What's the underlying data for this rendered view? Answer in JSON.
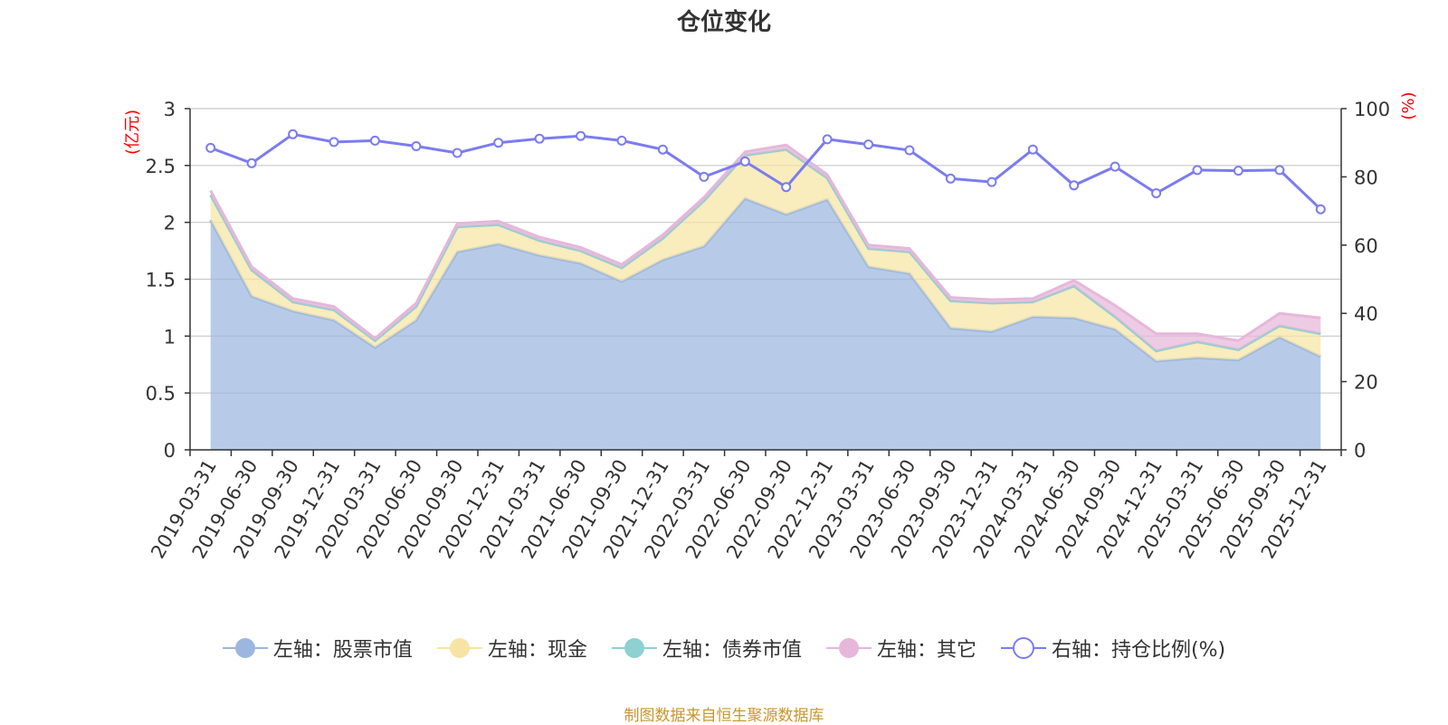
{
  "chart_data": {
    "type": "area",
    "title": "仓位变化",
    "y_left_label": "(亿元)",
    "y_right_label": "(%)",
    "y_left_range": [
      0,
      3
    ],
    "y_right_range": [
      0,
      100
    ],
    "y_left_ticks": [
      "0",
      "0.5",
      "1",
      "1.5",
      "2",
      "2.5",
      "3"
    ],
    "y_right_ticks": [
      "0",
      "20",
      "40",
      "60",
      "80",
      "100"
    ],
    "categories": [
      "2019-03-31",
      "2019-06-30",
      "2019-09-30",
      "2019-12-31",
      "2020-03-31",
      "2020-06-30",
      "2020-09-30",
      "2020-12-31",
      "2021-03-31",
      "2021-06-30",
      "2021-09-30",
      "2021-12-31",
      "2022-03-31",
      "2022-06-30",
      "2022-09-30",
      "2022-12-31",
      "2023-03-31",
      "2023-06-30",
      "2023-09-30",
      "2023-12-31",
      "2024-03-31",
      "2024-06-30",
      "2024-09-30",
      "2024-12-31",
      "2025-03-31",
      "2025-06-30",
      "2025-09-30",
      "2025-12-31"
    ],
    "series": [
      {
        "name": "左轴：股票市值",
        "axis": "left",
        "color": "#9bb7e0",
        "values": [
          2.02,
          1.35,
          1.22,
          1.14,
          0.9,
          1.14,
          1.74,
          1.81,
          1.71,
          1.64,
          1.48,
          1.67,
          1.79,
          2.21,
          2.07,
          2.2,
          1.61,
          1.55,
          1.07,
          1.04,
          1.17,
          1.16,
          1.06,
          0.78,
          0.81,
          0.79,
          0.99,
          0.82
        ]
      },
      {
        "name": "左轴：现金",
        "axis": "left",
        "color": "#f7e4a4",
        "values": [
          0.22,
          0.23,
          0.08,
          0.09,
          0.06,
          0.12,
          0.22,
          0.17,
          0.13,
          0.11,
          0.12,
          0.19,
          0.4,
          0.38,
          0.57,
          0.19,
          0.16,
          0.19,
          0.24,
          0.25,
          0.13,
          0.28,
          0.11,
          0.09,
          0.14,
          0.09,
          0.1,
          0.2
        ]
      },
      {
        "name": "左轴：债券市值",
        "axis": "left",
        "color": "#8fd0d2",
        "values": [
          0,
          0,
          0,
          0,
          0,
          0,
          0,
          0,
          0,
          0,
          0,
          0,
          0,
          0,
          0,
          0,
          0,
          0,
          0,
          0,
          0,
          0,
          0,
          0,
          0,
          0,
          0,
          0
        ]
      },
      {
        "name": "左轴：其它",
        "axis": "left",
        "color": "#e6b7da",
        "values": [
          0.04,
          0.03,
          0.03,
          0.03,
          0.02,
          0.03,
          0.03,
          0.03,
          0.03,
          0.03,
          0.03,
          0.03,
          0.03,
          0.03,
          0.04,
          0.03,
          0.03,
          0.03,
          0.03,
          0.03,
          0.03,
          0.05,
          0.1,
          0.15,
          0.07,
          0.08,
          0.11,
          0.14
        ]
      },
      {
        "name": "右轴：持仓比例(%)",
        "axis": "right",
        "color": "#7b7cf0",
        "values": [
          88.5,
          84,
          92.5,
          90.2,
          90.6,
          89,
          87,
          90,
          91.2,
          92,
          90.6,
          88,
          80,
          84.5,
          77,
          91,
          89.5,
          87.8,
          79.5,
          78.5,
          88,
          77.5,
          83,
          75.2,
          82,
          81.8,
          82,
          70.5
        ]
      }
    ]
  },
  "legend": {
    "stock": "左轴：股票市值",
    "cash": "左轴：现金",
    "bond": "左轴：债券市值",
    "other": "左轴：其它",
    "ratio": "右轴：持仓比例(%)"
  },
  "source": "制图数据来自恒生聚源数据库"
}
